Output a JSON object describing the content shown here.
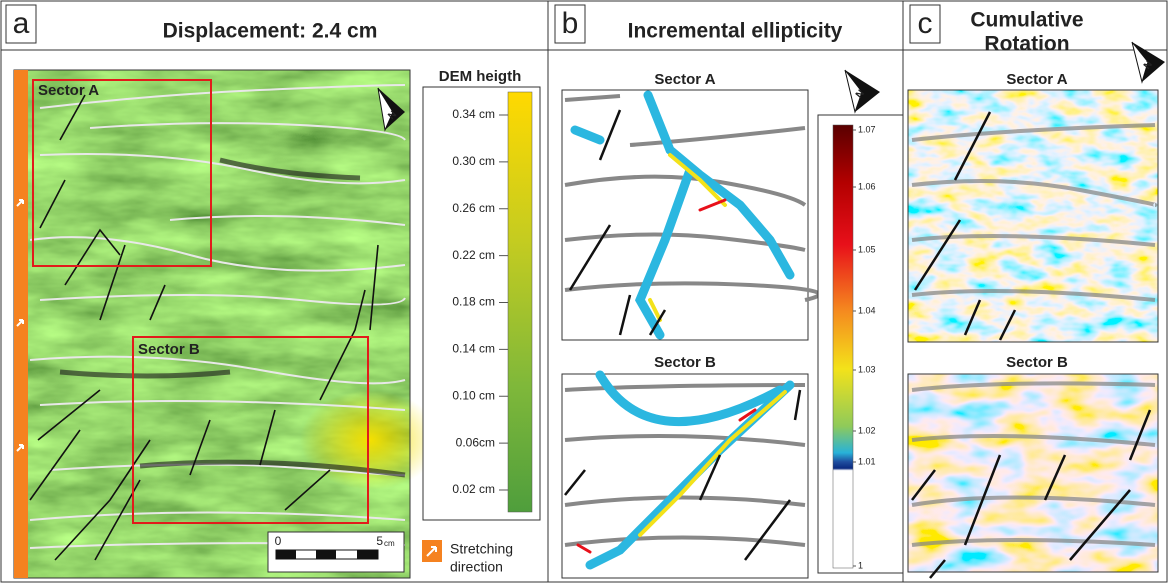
{
  "panels": [
    {
      "label": "a",
      "title": "Displacement: 2.4 cm",
      "sectors": [
        "Sector A",
        "Sector B"
      ],
      "north": "N",
      "legend": {
        "title": "DEM heigth",
        "ticks": [
          "0.34 cm",
          "0.30 cm",
          "0.26 cm",
          "0.22 cm",
          "0.18 cm",
          "0.14 cm",
          "0.10 cm",
          "0.06cm",
          "0.02 cm"
        ]
      },
      "scale_bar": {
        "start": "0",
        "end": "5",
        "unit": "cm"
      },
      "stretching": [
        "Stretching",
        "direction"
      ]
    },
    {
      "label": "b",
      "title": "Incremental ellipticity",
      "sectors": [
        "Sector A",
        "Sector B"
      ],
      "north": "N",
      "colorbar_ticks": [
        "1.07",
        "1.06",
        "1.05",
        "1.04",
        "1.03",
        "1.02",
        "1.01",
        "1"
      ]
    },
    {
      "label": "c",
      "title_lines": [
        "Cumulative",
        "Rotation"
      ],
      "sectors": [
        "Sector A",
        "Sector B"
      ],
      "north": "N"
    }
  ]
}
